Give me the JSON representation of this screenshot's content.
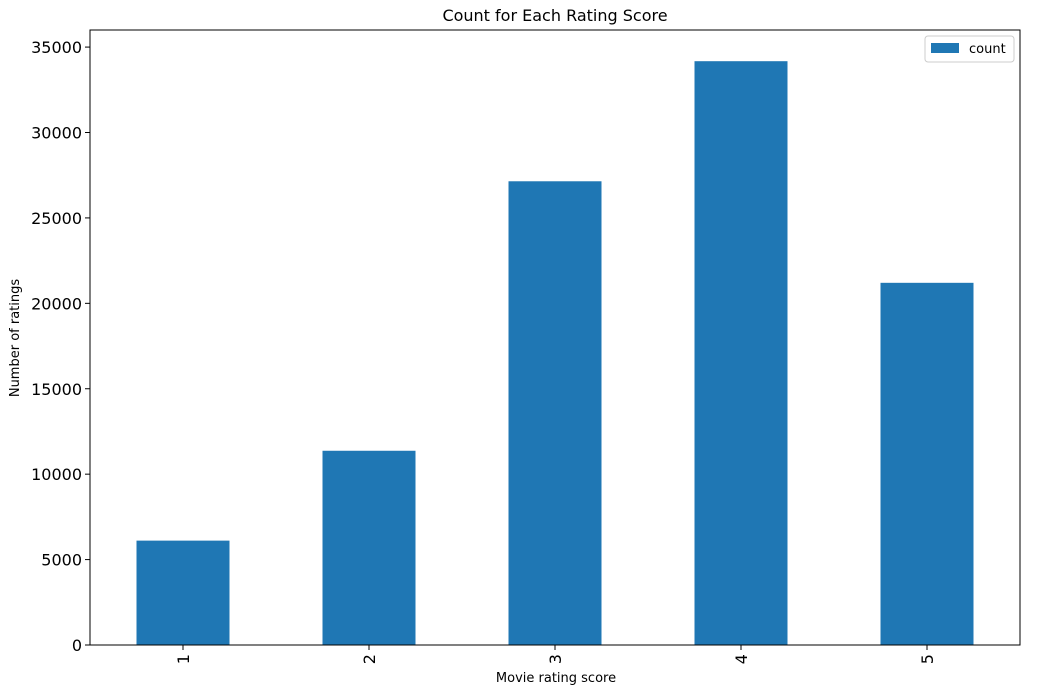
{
  "chart_data": {
    "type": "bar",
    "title": "Count for Each Rating Score",
    "xlabel": "Movie rating score",
    "ylabel": "Number of ratings",
    "categories": [
      "1",
      "2",
      "3",
      "4",
      "5"
    ],
    "series": [
      {
        "name": "count",
        "values": [
          6110,
          11370,
          27145,
          34174,
          21201
        ],
        "color": "#1f77b4"
      }
    ],
    "ylim": [
      0,
      36000
    ],
    "yticks": [
      0,
      5000,
      10000,
      15000,
      20000,
      25000,
      30000,
      35000
    ],
    "ytick_labels": [
      "0",
      "5000",
      "10000",
      "15000",
      "20000",
      "25000",
      "30000",
      "35000"
    ],
    "xtick_rotation": "vertical",
    "grid": false,
    "legend": {
      "placement": "top-right",
      "entries": [
        "count"
      ]
    }
  }
}
